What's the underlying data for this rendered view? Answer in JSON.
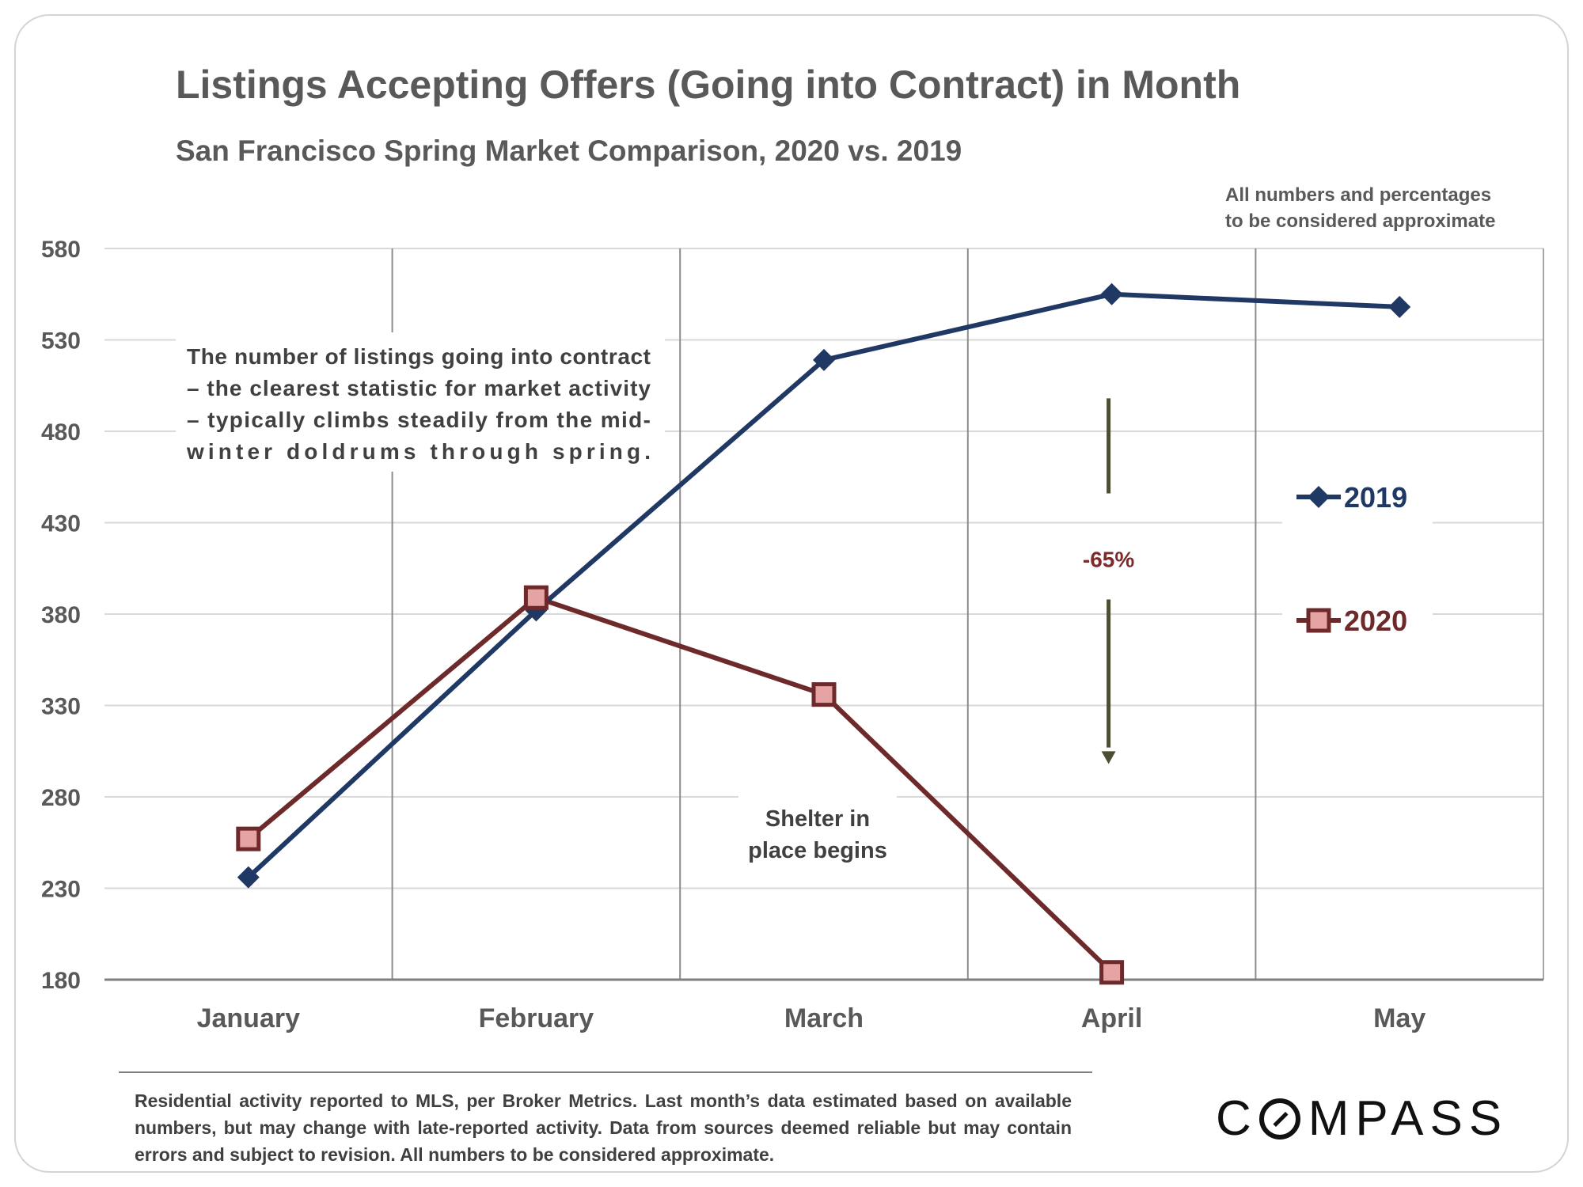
{
  "header": {
    "title": "Listings Accepting Offers (Going into Contract) in Month",
    "subtitle": "San Francisco Spring Market Comparison, 2020 vs. 2019",
    "disclaimer_line1": "All numbers and percentages",
    "disclaimer_line2": "to be considered approximate"
  },
  "chart_data": {
    "type": "line",
    "title": "Listings Accepting Offers (Going into Contract) in Month",
    "subtitle": "San Francisco Spring Market Comparison, 2020 vs. 2019",
    "categories": [
      "January",
      "February",
      "March",
      "April",
      "May"
    ],
    "y_ticks": [
      180,
      230,
      280,
      330,
      380,
      430,
      480,
      530,
      580
    ],
    "ylim": [
      180,
      580
    ],
    "grid": "horizontal lines at every tick; vertical lines between months",
    "legend_position": "right",
    "series": [
      {
        "name": "2019",
        "values": [
          236,
          382,
          519,
          555,
          548
        ],
        "color": "#1f3864",
        "marker": "diamond"
      },
      {
        "name": "2020",
        "values": [
          257,
          389,
          336,
          184,
          null
        ],
        "color": "#6e2a2a",
        "marker_fill": "#e6a3a3",
        "marker": "square"
      }
    ],
    "annotations": {
      "note_lines": [
        "The number of listings going into contract",
        "– the clearest statistic for market activity",
        "– typically climbs steadily from the mid-",
        "winter doldrums through spring."
      ],
      "shelter_line1": "Shelter in",
      "shelter_line2": "place  begins",
      "change_label": "-65%",
      "arrow_color": "#4d4d33",
      "change_color": "#7f2a2a"
    }
  },
  "footer": {
    "text": "Residential activity reported to MLS, per Broker Metrics. Last month’s data estimated based on available numbers, but may change with late-reported activity. Data from sources deemed reliable but may contain errors and subject to revision. All numbers to be considered approximate.",
    "logo_before": "C",
    "logo_after": "MPASS"
  }
}
